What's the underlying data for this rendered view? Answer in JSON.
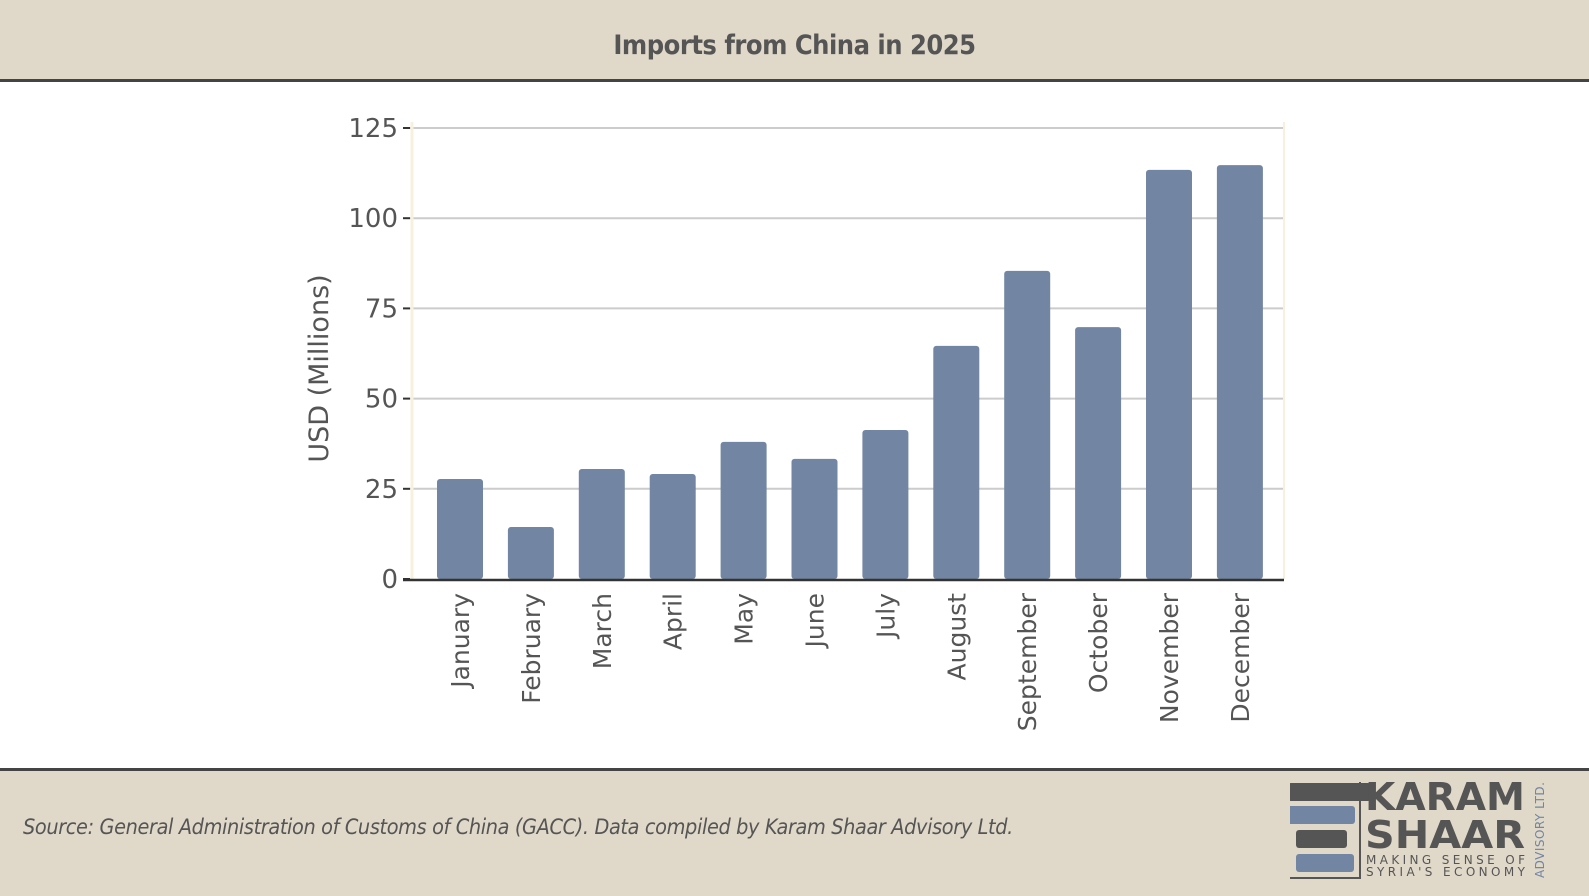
{
  "header": {
    "title": "Imports from China in 2025"
  },
  "footer": {
    "source": "Source: General Administration of Customs of China (GACC). Data compiled by Karam Shaar Advisory Ltd."
  },
  "logo": {
    "line1": "KARAM",
    "line2": "SHAAR",
    "tagline1": "MAKING SENSE OF",
    "tagline2": "SYRIA'S ECONOMY",
    "side": "ADVISORY LTD."
  },
  "colors": {
    "bar": "#7285a2",
    "background": "#e0d9c9",
    "text": "#555555",
    "grid": "#cccccc",
    "axis": "#333333"
  },
  "chart_data": {
    "type": "bar",
    "title": "Imports from China in 2025",
    "xlabel": "",
    "ylabel": "USD (Millions)",
    "ylim": [
      0,
      125
    ],
    "yticks": [
      0,
      25,
      50,
      75,
      100,
      125
    ],
    "grid": true,
    "categories": [
      "January",
      "February",
      "March",
      "April",
      "May",
      "June",
      "July",
      "August",
      "September",
      "October",
      "November",
      "December"
    ],
    "values": [
      27.7,
      14.4,
      30.5,
      29.1,
      38.0,
      33.3,
      41.3,
      64.6,
      85.4,
      69.8,
      113.4,
      114.7
    ]
  }
}
